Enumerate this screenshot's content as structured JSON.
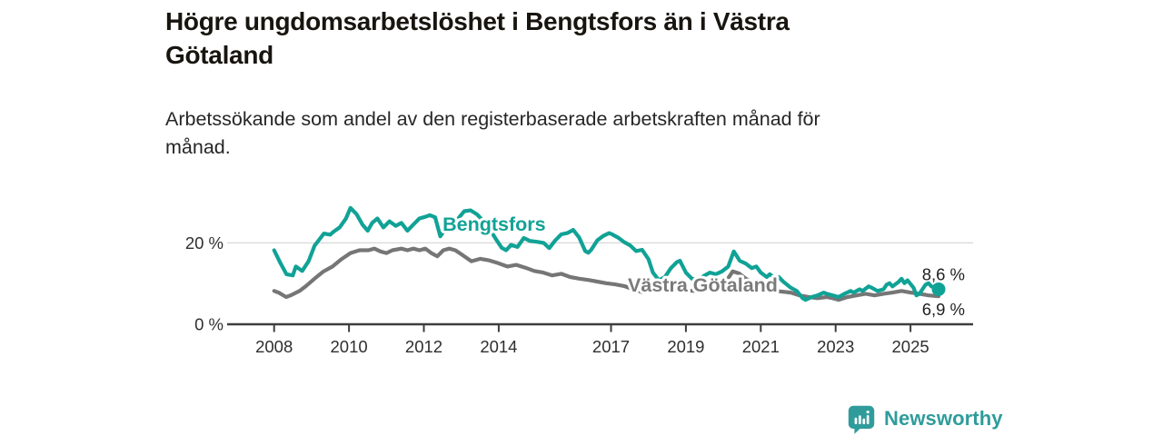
{
  "header": {
    "title": "Högre ungdomsarbetslöshet i Bengtsfors än i Västra Götaland",
    "title_lines": [
      "Högre ungdomsarbetslöshet i Bengtsfors än i Västra",
      "Götaland"
    ],
    "subtitle": "Arbetssökande som andel av den registerbaserade arbetskraften månad för månad.",
    "subtitle_lines": [
      "Arbetssökande som andel av den registerbaserade arbetskraften månad för",
      "månad."
    ]
  },
  "footer": {
    "brand": "Newsworthy",
    "brand_color": "#2f9c9b",
    "logo_icon": "newsworthy-speech-bubble-bar-chart-icon"
  },
  "chart_data": {
    "type": "line",
    "title": "Högre ungdomsarbetslöshet i Bengtsfors än i Västra Götaland",
    "unit": "%",
    "grid": "horizontal-at-20-only",
    "legend_position": "inline-labels-on-lines",
    "colors": {
      "axis": "#3d3d3d",
      "tick_label": "#2e2e2e",
      "gridline": "#d8d8d8",
      "annotation_text": "#1f1f1f"
    },
    "x_axis": {
      "ticks": [
        2008,
        2010,
        2012,
        2014,
        2017,
        2019,
        2021,
        2023,
        2025
      ],
      "range": [
        2006.75,
        2026.7
      ]
    },
    "y_axis": {
      "ticks": [
        {
          "value": 0,
          "label": "0 %"
        },
        {
          "value": 20,
          "label": "20 %"
        }
      ],
      "range": [
        0,
        33
      ],
      "gridline_values": [
        20
      ]
    },
    "series": [
      {
        "name": "Västra Götaland",
        "inline_label": "Västra Götaland",
        "inline_label_pos": {
          "year": 2017.45,
          "value": 8.0
        },
        "end_label": "6,9 %",
        "end_value": 6.9,
        "color": "#767676",
        "label_color": "#7b7b7b",
        "points": [
          [
            2008.0,
            8.2
          ],
          [
            2008.12,
            7.8
          ],
          [
            2008.32,
            6.7
          ],
          [
            2008.44,
            7.1
          ],
          [
            2008.68,
            8.2
          ],
          [
            2008.84,
            9.3
          ],
          [
            2009.08,
            11.2
          ],
          [
            2009.32,
            13.0
          ],
          [
            2009.56,
            14.2
          ],
          [
            2009.8,
            16.0
          ],
          [
            2010.04,
            17.5
          ],
          [
            2010.28,
            18.2
          ],
          [
            2010.52,
            18.2
          ],
          [
            2010.68,
            18.6
          ],
          [
            2010.84,
            17.9
          ],
          [
            2011.0,
            17.5
          ],
          [
            2011.16,
            18.2
          ],
          [
            2011.4,
            18.6
          ],
          [
            2011.56,
            18.2
          ],
          [
            2011.72,
            18.6
          ],
          [
            2011.88,
            18.2
          ],
          [
            2012.04,
            18.6
          ],
          [
            2012.2,
            17.5
          ],
          [
            2012.36,
            16.7
          ],
          [
            2012.52,
            18.2
          ],
          [
            2012.68,
            18.6
          ],
          [
            2012.84,
            18.2
          ],
          [
            2013.0,
            17.2
          ],
          [
            2013.27,
            15.5
          ],
          [
            2013.51,
            16.1
          ],
          [
            2013.75,
            15.7
          ],
          [
            2013.99,
            15.0
          ],
          [
            2014.23,
            14.2
          ],
          [
            2014.47,
            14.6
          ],
          [
            2014.71,
            13.9
          ],
          [
            2014.95,
            13.1
          ],
          [
            2015.19,
            12.7
          ],
          [
            2015.43,
            12.0
          ],
          [
            2015.67,
            12.4
          ],
          [
            2015.91,
            11.6
          ],
          [
            2016.15,
            11.2
          ],
          [
            2016.39,
            10.9
          ],
          [
            2016.63,
            10.5
          ],
          [
            2016.87,
            10.1
          ],
          [
            2017.11,
            9.8
          ],
          [
            2017.35,
            9.4
          ],
          [
            2017.59,
            8.6
          ],
          [
            2017.83,
            7.9
          ],
          [
            2018.04,
            8.6
          ],
          [
            2018.3,
            8.4
          ],
          [
            2018.5,
            8.1
          ],
          [
            2018.75,
            8.3
          ],
          [
            2019.0,
            8.3
          ],
          [
            2019.25,
            8.2
          ],
          [
            2019.5,
            8.4
          ],
          [
            2019.75,
            8.8
          ],
          [
            2020.0,
            9.5
          ],
          [
            2020.25,
            13.0
          ],
          [
            2020.42,
            12.5
          ],
          [
            2020.6,
            11.2
          ],
          [
            2020.84,
            10.1
          ],
          [
            2021.08,
            9.0
          ],
          [
            2021.4,
            8.2
          ],
          [
            2021.8,
            7.8
          ],
          [
            2022.04,
            7.1
          ],
          [
            2022.28,
            6.7
          ],
          [
            2022.52,
            6.4
          ],
          [
            2022.76,
            6.7
          ],
          [
            2022.92,
            6.4
          ],
          [
            2023.08,
            6.0
          ],
          [
            2023.32,
            6.7
          ],
          [
            2023.56,
            7.1
          ],
          [
            2023.8,
            7.5
          ],
          [
            2024.04,
            7.1
          ],
          [
            2024.28,
            7.5
          ],
          [
            2024.52,
            7.8
          ],
          [
            2024.76,
            8.2
          ],
          [
            2025.0,
            7.8
          ],
          [
            2025.24,
            7.5
          ],
          [
            2025.48,
            7.1
          ],
          [
            2025.75,
            6.9
          ]
        ]
      },
      {
        "name": "Bengtsfors",
        "inline_label": "Bengtsfors",
        "inline_label_pos": {
          "year": 2012.5,
          "value": 23.0
        },
        "end_label": "8,6 %",
        "end_value": 8.6,
        "color": "#11a296",
        "label_color": "#11a296",
        "end_dot": true,
        "points": [
          [
            2008.0,
            18.2
          ],
          [
            2008.17,
            15.0
          ],
          [
            2008.33,
            12.3
          ],
          [
            2008.5,
            12.0
          ],
          [
            2008.58,
            14.2
          ],
          [
            2008.75,
            13.1
          ],
          [
            2008.92,
            15.5
          ],
          [
            2009.08,
            19.3
          ],
          [
            2009.33,
            22.3
          ],
          [
            2009.5,
            22.0
          ],
          [
            2009.58,
            22.7
          ],
          [
            2009.75,
            23.8
          ],
          [
            2009.92,
            26.0
          ],
          [
            2010.04,
            28.6
          ],
          [
            2010.2,
            27.1
          ],
          [
            2010.36,
            24.5
          ],
          [
            2010.5,
            23.0
          ],
          [
            2010.62,
            24.9
          ],
          [
            2010.76,
            26.0
          ],
          [
            2010.92,
            23.8
          ],
          [
            2011.08,
            25.3
          ],
          [
            2011.25,
            24.2
          ],
          [
            2011.4,
            24.9
          ],
          [
            2011.56,
            23.0
          ],
          [
            2011.72,
            24.5
          ],
          [
            2011.88,
            26.0
          ],
          [
            2012.04,
            26.4
          ],
          [
            2012.16,
            26.8
          ],
          [
            2012.3,
            26.3
          ],
          [
            2012.44,
            21.6
          ],
          [
            2012.6,
            23.8
          ],
          [
            2012.76,
            24.5
          ],
          [
            2012.92,
            26.0
          ],
          [
            2013.08,
            27.8
          ],
          [
            2013.25,
            28.0
          ],
          [
            2013.42,
            27.0
          ],
          [
            2013.58,
            25.5
          ],
          [
            2013.75,
            23.5
          ],
          [
            2013.92,
            21.0
          ],
          [
            2014.08,
            18.8
          ],
          [
            2014.2,
            18.2
          ],
          [
            2014.33,
            19.5
          ],
          [
            2014.5,
            19.0
          ],
          [
            2014.67,
            21.2
          ],
          [
            2014.83,
            20.5
          ],
          [
            2015.0,
            20.3
          ],
          [
            2015.2,
            20.0
          ],
          [
            2015.35,
            18.7
          ],
          [
            2015.51,
            20.6
          ],
          [
            2015.67,
            22.1
          ],
          [
            2015.83,
            22.4
          ],
          [
            2015.99,
            23.2
          ],
          [
            2016.15,
            21.3
          ],
          [
            2016.31,
            18.0
          ],
          [
            2016.39,
            17.6
          ],
          [
            2016.47,
            18.3
          ],
          [
            2016.63,
            20.6
          ],
          [
            2016.79,
            21.7
          ],
          [
            2016.95,
            22.4
          ],
          [
            2017.03,
            22.1
          ],
          [
            2017.19,
            21.3
          ],
          [
            2017.35,
            20.2
          ],
          [
            2017.51,
            19.4
          ],
          [
            2017.67,
            18.0
          ],
          [
            2017.83,
            18.3
          ],
          [
            2018.0,
            16.0
          ],
          [
            2018.12,
            12.7
          ],
          [
            2018.28,
            10.8
          ],
          [
            2018.44,
            11.6
          ],
          [
            2018.6,
            13.8
          ],
          [
            2018.76,
            15.3
          ],
          [
            2018.84,
            15.6
          ],
          [
            2019.0,
            12.7
          ],
          [
            2019.16,
            11.2
          ],
          [
            2019.32,
            10.8
          ],
          [
            2019.48,
            11.9
          ],
          [
            2019.64,
            12.7
          ],
          [
            2019.8,
            12.3
          ],
          [
            2019.96,
            13.0
          ],
          [
            2020.13,
            14.2
          ],
          [
            2020.28,
            17.9
          ],
          [
            2020.44,
            15.6
          ],
          [
            2020.6,
            14.9
          ],
          [
            2020.76,
            13.8
          ],
          [
            2020.88,
            14.2
          ],
          [
            2021.0,
            12.7
          ],
          [
            2021.16,
            11.6
          ],
          [
            2021.24,
            12.3
          ],
          [
            2021.4,
            11.2
          ],
          [
            2021.48,
            11.6
          ],
          [
            2021.6,
            10.5
          ],
          [
            2021.8,
            9.0
          ],
          [
            2021.96,
            8.2
          ],
          [
            2022.12,
            6.4
          ],
          [
            2022.2,
            6.0
          ],
          [
            2022.36,
            6.7
          ],
          [
            2022.52,
            7.1
          ],
          [
            2022.68,
            7.8
          ],
          [
            2022.76,
            7.5
          ],
          [
            2022.92,
            7.1
          ],
          [
            2023.08,
            6.7
          ],
          [
            2023.24,
            7.5
          ],
          [
            2023.4,
            8.2
          ],
          [
            2023.48,
            7.8
          ],
          [
            2023.64,
            8.6
          ],
          [
            2023.72,
            8.2
          ],
          [
            2023.88,
            9.3
          ],
          [
            2023.96,
            9.0
          ],
          [
            2024.12,
            8.2
          ],
          [
            2024.28,
            8.6
          ],
          [
            2024.36,
            9.7
          ],
          [
            2024.44,
            10.1
          ],
          [
            2024.52,
            9.3
          ],
          [
            2024.68,
            10.4
          ],
          [
            2024.76,
            11.2
          ],
          [
            2024.84,
            10.1
          ],
          [
            2024.92,
            10.8
          ],
          [
            2025.08,
            9.0
          ],
          [
            2025.16,
            7.1
          ],
          [
            2025.24,
            7.5
          ],
          [
            2025.4,
            9.7
          ],
          [
            2025.48,
            10.1
          ],
          [
            2025.56,
            9.3
          ],
          [
            2025.75,
            8.6
          ]
        ]
      }
    ]
  }
}
